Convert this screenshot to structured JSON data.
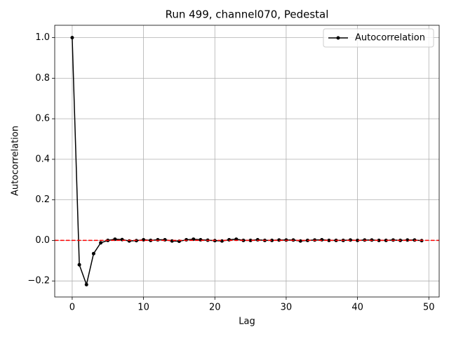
{
  "chart_data": {
    "type": "line",
    "title": "Run 499, channel070, Pedestal",
    "x_label": "Lag",
    "y_label": "Autocorrelation",
    "x": [
      0,
      1,
      2,
      3,
      4,
      5,
      6,
      7,
      8,
      9,
      10,
      11,
      12,
      13,
      14,
      15,
      16,
      17,
      18,
      19,
      20,
      21,
      22,
      23,
      24,
      25,
      26,
      27,
      28,
      29,
      30,
      31,
      32,
      33,
      34,
      35,
      36,
      37,
      38,
      39,
      40,
      41,
      42,
      43,
      44,
      45,
      46,
      47,
      48,
      49
    ],
    "series": [
      {
        "name": "Autocorrelation",
        "color": "#000000",
        "values": [
          1.0,
          -0.12,
          -0.218,
          -0.065,
          -0.012,
          0.0,
          0.006,
          0.004,
          -0.003,
          -0.001,
          0.003,
          0.0,
          0.003,
          0.003,
          -0.003,
          -0.004,
          0.003,
          0.006,
          0.003,
          0.001,
          -0.001,
          -0.003,
          0.003,
          0.006,
          0.0,
          0.0,
          0.003,
          0.0,
          0.0,
          0.002,
          0.002,
          0.002,
          -0.003,
          0.0,
          0.002,
          0.003,
          0.0,
          0.0,
          0.0,
          0.002,
          0.0,
          0.002,
          0.002,
          0.0,
          0.0,
          0.002,
          0.0,
          0.002,
          0.002,
          -0.001
        ]
      }
    ],
    "reference_line": {
      "value": 0,
      "color": "#ff0000",
      "style": "dashed"
    },
    "xlim": [
      -2.45,
      51.45
    ],
    "ylim": [
      -0.279,
      1.061
    ],
    "xticks": [
      0,
      10,
      20,
      30,
      40,
      50
    ],
    "yticks": [
      {
        "value": -0.2,
        "label": "−0.2"
      },
      {
        "value": 0,
        "label": "0.0"
      },
      {
        "value": 0.2,
        "label": "0.2"
      },
      {
        "value": 0.4,
        "label": "0.4"
      },
      {
        "value": 0.6,
        "label": "0.6"
      },
      {
        "value": 0.8,
        "label": "0.8"
      },
      {
        "value": 1.0,
        "label": "1.0"
      }
    ],
    "grid": true,
    "legend": "upper right"
  }
}
